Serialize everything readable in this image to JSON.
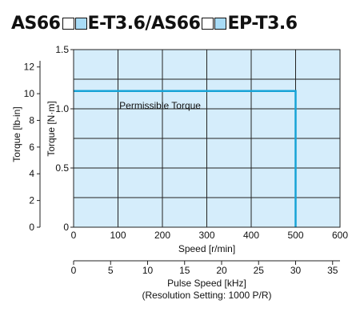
{
  "title": {
    "part1": "AS66",
    "part2": "E-T3.6/AS66",
    "part3": "EP-T3.6"
  },
  "colors": {
    "plot_background": "#d5edfb",
    "curve": "#17a3d6",
    "grid": "#222222",
    "filled_square": "#a9dcf7"
  },
  "chart_data": {
    "type": "line",
    "x": [
      0,
      500,
      500
    ],
    "series": [
      {
        "name": "Permissible Torque",
        "values": [
          1.15,
          1.15,
          0
        ]
      }
    ],
    "annotation": "Permissible Torque",
    "xlabel": "Speed [r/min]",
    "xlim": [
      0,
      600
    ],
    "xticks": [
      "0",
      "100",
      "200",
      "300",
      "400",
      "500",
      "600"
    ],
    "ylabel_left": "Torque [lb-in]",
    "ylim_left": [
      0,
      13.3
    ],
    "yticks_left": [
      "0",
      "2",
      "4",
      "6",
      "8",
      "10",
      "12"
    ],
    "ylabel_right": "Torque [N·m]",
    "ylim_right": [
      0,
      1.5
    ],
    "yticks_right": [
      "0",
      "0.5",
      "1.0",
      "1.5"
    ],
    "secondary_x": {
      "label": "Pulse Speed [kHz]",
      "note": "(Resolution Setting: 1000 P/R)",
      "xlim": [
        0,
        36
      ],
      "ticks": [
        "0",
        "5",
        "10",
        "15",
        "20",
        "25",
        "30",
        "35"
      ]
    },
    "grid": true
  }
}
